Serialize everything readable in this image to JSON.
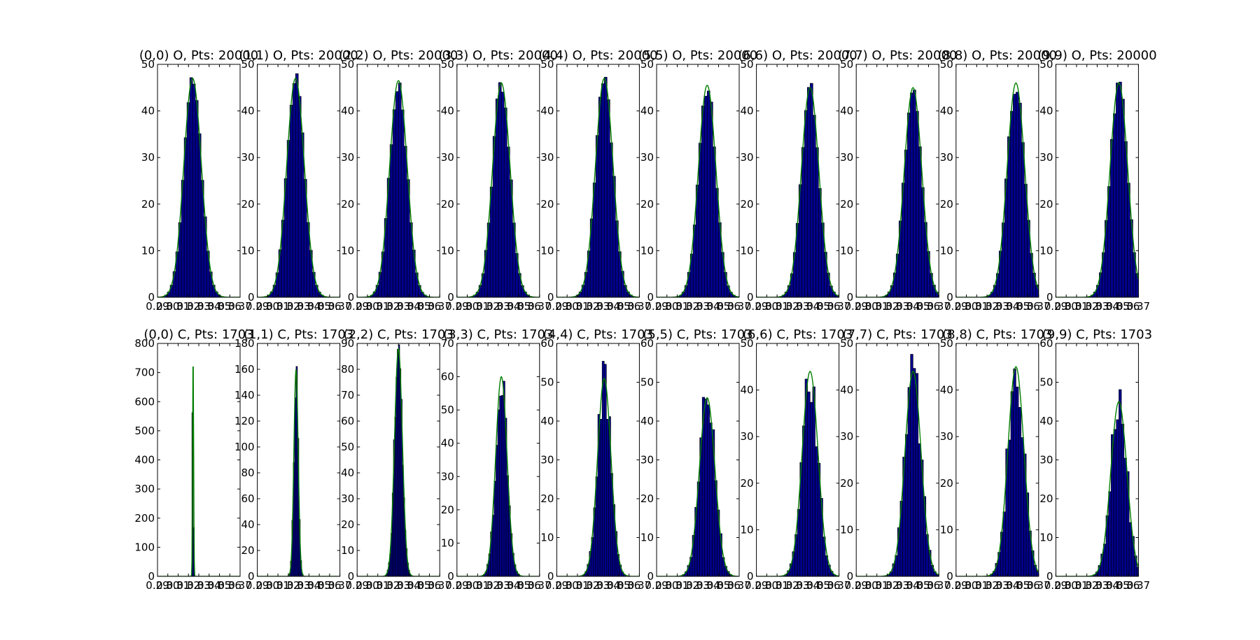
{
  "chart_data": {
    "type": "bar",
    "layout": "2 rows x 10 columns of histogram panels",
    "bar_color": "#00008b",
    "bar_edge_color": "#000000",
    "fit_curve_color": "#007f00",
    "x_tick_labels": [
      "0.29",
      "0.30",
      "0.31",
      "0.32",
      "0.33",
      "0.34",
      "0.35",
      "0.36",
      "0.37"
    ],
    "xlim": [
      0.29,
      0.37
    ],
    "rows": [
      {
        "panels": [
          {
            "title": "(0,0) O, Pts: 20000",
            "mean": 0.324,
            "sd": 0.0085,
            "peak": 47,
            "ylim": [
              0,
              50
            ],
            "yticks": [
              "0",
              "10",
              "20",
              "30",
              "40",
              "50"
            ]
          },
          {
            "title": "(1,1) O, Pts: 20000",
            "mean": 0.327,
            "sd": 0.0085,
            "peak": 47,
            "ylim": [
              0,
              50
            ],
            "yticks": [
              "0",
              "10",
              "20",
              "30",
              "40",
              "50"
            ]
          },
          {
            "title": "(2,2) O, Pts: 20000",
            "mean": 0.33,
            "sd": 0.0085,
            "peak": 46.5,
            "ylim": [
              0,
              50
            ],
            "yticks": [
              "0",
              "10",
              "20",
              "30",
              "40",
              "50"
            ]
          },
          {
            "title": "(3,3) O, Pts: 20000",
            "mean": 0.333,
            "sd": 0.0085,
            "peak": 46,
            "ylim": [
              0,
              50
            ],
            "yticks": [
              "0",
              "10",
              "20",
              "30",
              "40",
              "50"
            ]
          },
          {
            "title": "(4,4) O, Pts: 20000",
            "mean": 0.336,
            "sd": 0.0085,
            "peak": 47,
            "ylim": [
              0,
              50
            ],
            "yticks": [
              "0",
              "10",
              "20",
              "30",
              "40",
              "50"
            ]
          },
          {
            "title": "(5,5) O, Pts: 20000",
            "mean": 0.339,
            "sd": 0.0085,
            "peak": 45.5,
            "ylim": [
              0,
              50
            ],
            "yticks": [
              "0",
              "10",
              "20",
              "30",
              "40",
              "50"
            ]
          },
          {
            "title": "(6,6) O, Pts: 20000",
            "mean": 0.342,
            "sd": 0.0085,
            "peak": 45,
            "ylim": [
              0,
              50
            ],
            "yticks": [
              "0",
              "10",
              "20",
              "30",
              "40",
              "50"
            ]
          },
          {
            "title": "(7,7) O, Pts: 20000",
            "mean": 0.345,
            "sd": 0.0085,
            "peak": 45,
            "ylim": [
              0,
              50
            ],
            "yticks": [
              "0",
              "10",
              "20",
              "30",
              "40",
              "50"
            ]
          },
          {
            "title": "(8,8) O, Pts: 20000",
            "mean": 0.348,
            "sd": 0.0085,
            "peak": 46,
            "ylim": [
              0,
              50
            ],
            "yticks": [
              "0",
              "10",
              "20",
              "30",
              "40",
              "50"
            ]
          },
          {
            "title": "(9,9) O, Pts: 20000",
            "mean": 0.351,
            "sd": 0.0085,
            "peak": 46,
            "ylim": [
              0,
              50
            ],
            "yticks": [
              "0",
              "10",
              "20",
              "30",
              "40",
              "50"
            ]
          }
        ]
      },
      {
        "panels": [
          {
            "title": "(0,0) C, Pts: 1703",
            "mean": 0.3245,
            "sd": 0.0005,
            "peak": 760,
            "ylim": [
              0,
              800
            ],
            "yticks": [
              "0",
              "100",
              "200",
              "300",
              "400",
              "500",
              "600",
              "700",
              "800"
            ]
          },
          {
            "title": "(1,1) C, Pts: 1703",
            "mean": 0.3275,
            "sd": 0.0021,
            "peak": 160,
            "ylim": [
              0,
              180
            ],
            "yticks": [
              "0",
              "20",
              "40",
              "60",
              "80",
              "100",
              "120",
              "140",
              "160",
              "180"
            ]
          },
          {
            "title": "(2,2) C, Pts: 1703",
            "mean": 0.33,
            "sd": 0.0038,
            "peak": 88,
            "ylim": [
              0,
              90
            ],
            "yticks": [
              "0",
              "10",
              "20",
              "30",
              "40",
              "50",
              "60",
              "70",
              "80",
              "90"
            ]
          },
          {
            "title": "(3,3) C, Pts: 1703",
            "mean": 0.333,
            "sd": 0.0055,
            "peak": 60,
            "ylim": [
              0,
              70
            ],
            "yticks": [
              "0",
              "10",
              "20",
              "30",
              "40",
              "50",
              "60",
              "70"
            ]
          },
          {
            "title": "(4,4) C, Pts: 1703",
            "mean": 0.336,
            "sd": 0.0065,
            "peak": 51,
            "ylim": [
              0,
              60
            ],
            "yticks": [
              "0",
              "10",
              "20",
              "30",
              "40",
              "50",
              "60"
            ]
          },
          {
            "title": "(5,5) C, Pts: 1703",
            "mean": 0.339,
            "sd": 0.0075,
            "peak": 46,
            "ylim": [
              0,
              60
            ],
            "yticks": [
              "0",
              "10",
              "20",
              "30",
              "40",
              "50",
              "60"
            ]
          },
          {
            "title": "(6,6) C, Pts: 1703",
            "mean": 0.342,
            "sd": 0.0077,
            "peak": 44,
            "ylim": [
              0,
              50
            ],
            "yticks": [
              "0",
              "10",
              "20",
              "30",
              "40",
              "50"
            ]
          },
          {
            "title": "(7,7) C, Pts: 1703",
            "mean": 0.345,
            "sd": 0.0078,
            "peak": 44,
            "ylim": [
              0,
              50
            ],
            "yticks": [
              "0",
              "10",
              "20",
              "30",
              "40",
              "50"
            ]
          },
          {
            "title": "(8,8) C, Pts: 1703",
            "mean": 0.348,
            "sd": 0.0078,
            "peak": 45,
            "ylim": [
              0,
              50
            ],
            "yticks": [
              "0",
              "10",
              "20",
              "30",
              "40",
              "50"
            ]
          },
          {
            "title": "(9,9) C, Pts: 1703",
            "mean": 0.351,
            "sd": 0.0078,
            "peak": 45,
            "ylim": [
              0,
              60
            ],
            "yticks": [
              "0",
              "10",
              "20",
              "30",
              "40",
              "50",
              "60"
            ]
          }
        ]
      }
    ]
  }
}
